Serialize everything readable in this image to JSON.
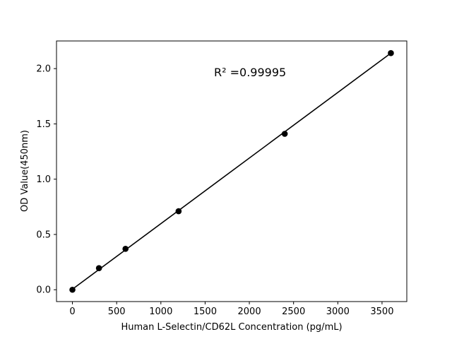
{
  "chart_data": {
    "type": "scatter",
    "xlabel": "Human L-Selectin/CD62L Concentration (pg/mL)",
    "ylabel": "OD Value(450nm)",
    "xlim": [
      -180,
      3780
    ],
    "ylim": [
      -0.107,
      2.25
    ],
    "x_ticks": [
      0,
      500,
      1000,
      1500,
      2000,
      2500,
      3000,
      3500
    ],
    "y_ticks": [
      0.0,
      0.5,
      1.0,
      1.5,
      2.0
    ],
    "x_tick_labels": [
      "0",
      "500",
      "1000",
      "1500",
      "2000",
      "2500",
      "3000",
      "3500"
    ],
    "y_tick_labels": [
      "0.0",
      "0.5",
      "1.0",
      "1.5",
      "2.0"
    ],
    "grid": false,
    "series": [
      {
        "x": [
          0,
          300,
          600,
          1200,
          2400,
          3600
        ],
        "y": [
          0.0,
          0.195,
          0.37,
          0.71,
          1.41,
          2.14
        ],
        "marker_color": "#000000",
        "line_color": "#000000"
      }
    ],
    "fit_line": {
      "x": [
        0,
        3600
      ],
      "y": [
        0.005,
        2.14
      ]
    },
    "annotation": {
      "text": "R² =0.99995",
      "x": 1800,
      "y": 1.93
    }
  }
}
